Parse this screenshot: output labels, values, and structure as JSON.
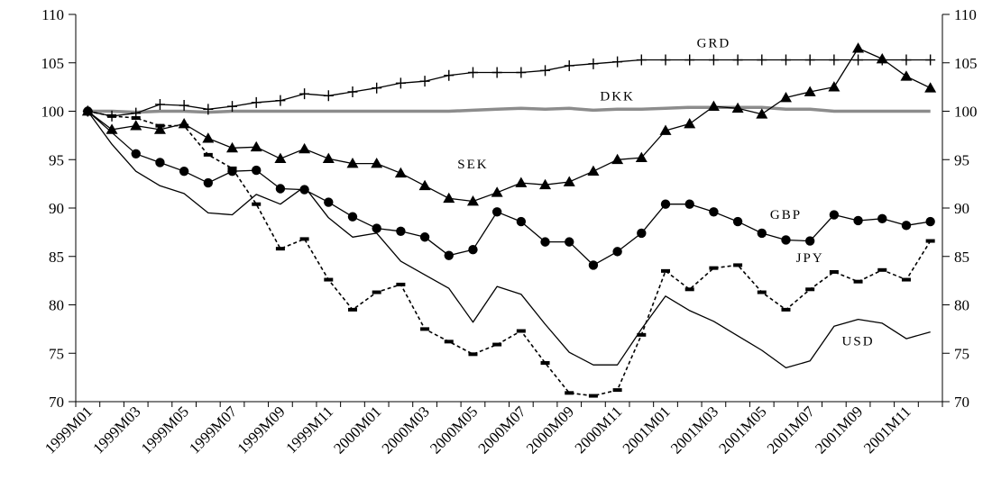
{
  "chart_data": {
    "type": "line",
    "title": "",
    "xlabel": "",
    "ylabel": "",
    "ylim": [
      70,
      110
    ],
    "yticks": [
      70,
      75,
      80,
      85,
      90,
      95,
      100,
      105,
      110
    ],
    "y_axis_sides": [
      "left",
      "right"
    ],
    "grid": false,
    "legend": "inline labels",
    "x": [
      "1999M01",
      "1999M02",
      "1999M03",
      "1999M04",
      "1999M05",
      "1999M06",
      "1999M07",
      "1999M08",
      "1999M09",
      "1999M10",
      "1999M11",
      "1999M12",
      "2000M01",
      "2000M02",
      "2000M03",
      "2000M04",
      "2000M05",
      "2000M06",
      "2000M07",
      "2000M08",
      "2000M09",
      "2000M10",
      "2000M11",
      "2000M12",
      "2001M01",
      "2001M02",
      "2001M03",
      "2001M04",
      "2001M05",
      "2001M06",
      "2001M07",
      "2001M08",
      "2001M09",
      "2001M10",
      "2001M11",
      "2001M12"
    ],
    "xtick_labels": [
      "1999M01",
      "1999M03",
      "1999M05",
      "1999M07",
      "1999M09",
      "1999M11",
      "2000M01",
      "2000M03",
      "2000M05",
      "2000M07",
      "2000M09",
      "2000M11",
      "2001M01",
      "2001M03",
      "2001M05",
      "2001M07",
      "2001M09",
      "2001M11"
    ],
    "series": [
      {
        "name": "GRD",
        "color": "#000000",
        "marker": "plus",
        "line": "solid",
        "values": [
          100.0,
          99.5,
          99.8,
          100.7,
          100.6,
          100.2,
          100.5,
          100.9,
          101.1,
          101.8,
          101.6,
          102.0,
          102.4,
          102.9,
          103.1,
          103.7,
          104.0,
          104.0,
          104.0,
          104.2,
          104.7,
          104.9,
          105.1,
          105.3,
          105.3,
          105.3,
          105.3,
          105.3,
          105.3,
          105.3,
          105.3,
          105.3,
          105.3,
          105.3,
          105.3,
          105.3
        ]
      },
      {
        "name": "DKK",
        "color": "#8c8c8c",
        "marker": "none",
        "line": "thick",
        "values": [
          100.0,
          100.0,
          99.9,
          100.0,
          100.0,
          99.9,
          100.0,
          100.0,
          100.0,
          100.0,
          100.0,
          100.0,
          100.0,
          100.0,
          100.0,
          100.0,
          100.1,
          100.2,
          100.3,
          100.2,
          100.3,
          100.1,
          100.2,
          100.2,
          100.3,
          100.4,
          100.4,
          100.4,
          100.4,
          100.2,
          100.2,
          100.0,
          100.0,
          100.0,
          100.0,
          100.0
        ]
      },
      {
        "name": "SEK",
        "color": "#000000",
        "marker": "triangle",
        "line": "solid",
        "values": [
          100.0,
          98.1,
          98.5,
          98.1,
          98.7,
          97.2,
          96.2,
          96.3,
          95.1,
          96.1,
          95.1,
          94.6,
          94.6,
          93.6,
          92.3,
          91.0,
          90.7,
          91.6,
          92.6,
          92.4,
          92.7,
          93.8,
          95.0,
          95.2,
          98.0,
          98.7,
          100.5,
          100.3,
          99.7,
          101.4,
          102.0,
          102.5,
          106.5,
          105.4,
          103.6,
          102.4
        ]
      },
      {
        "name": "GBP",
        "color": "#000000",
        "marker": "circle",
        "line": "solid",
        "values": [
          100.0,
          null,
          95.6,
          94.7,
          93.8,
          92.6,
          93.8,
          93.9,
          92.0,
          91.9,
          90.6,
          89.1,
          87.9,
          87.6,
          87.0,
          85.1,
          85.7,
          89.6,
          88.6,
          86.5,
          86.5,
          84.1,
          85.5,
          87.4,
          90.4,
          90.4,
          89.6,
          88.6,
          87.4,
          86.7,
          86.6,
          89.3,
          88.7,
          88.9,
          88.2,
          88.6
        ]
      },
      {
        "name": "JPY",
        "color": "#000000",
        "marker": "dash",
        "line": "dashed",
        "values": [
          100.0,
          99.5,
          99.3,
          98.5,
          98.5,
          95.5,
          94.1,
          90.4,
          85.8,
          86.8,
          82.6,
          79.5,
          81.3,
          82.1,
          77.5,
          76.2,
          74.9,
          75.9,
          77.3,
          74.0,
          70.9,
          70.6,
          71.2,
          76.9,
          83.5,
          81.6,
          83.8,
          84.1,
          81.3,
          79.5,
          81.6,
          83.4,
          82.4,
          83.6,
          82.6,
          86.6
        ]
      },
      {
        "name": "USD",
        "color": "#000000",
        "marker": "none",
        "line": "solid",
        "values": [
          100.0,
          96.6,
          93.8,
          92.3,
          91.5,
          89.5,
          89.3,
          91.4,
          90.4,
          92.2,
          89.0,
          87.0,
          87.4,
          84.5,
          83.1,
          81.7,
          78.2,
          81.9,
          81.1,
          78.0,
          75.1,
          73.8,
          73.8,
          77.5,
          80.9,
          79.4,
          78.3,
          76.8,
          75.3,
          73.5,
          74.2,
          77.8,
          78.5,
          78.1,
          76.5,
          77.2
        ]
      }
    ],
    "annotations": [
      {
        "text": "GRD",
        "x": "2001M03",
        "y": 106.6
      },
      {
        "text": "DKK",
        "x": "2000M11",
        "y": 101.1
      },
      {
        "text": "SEK",
        "x": "2000M05",
        "y": 94.1
      },
      {
        "text": "GBP",
        "x": "2001M06",
        "y": 88.9
      },
      {
        "text": "JPY",
        "x": "2001M07",
        "y": 84.4
      },
      {
        "text": "USD",
        "x": "2001M09",
        "y": 75.8
      }
    ]
  }
}
